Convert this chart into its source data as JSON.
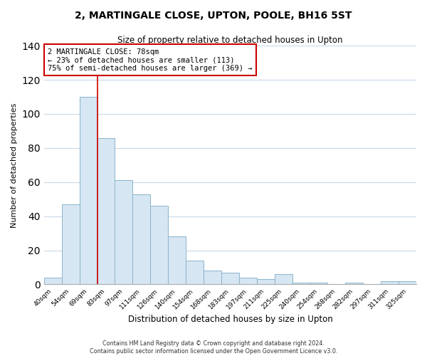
{
  "title": "2, MARTINGALE CLOSE, UPTON, POOLE, BH16 5ST",
  "subtitle": "Size of property relative to detached houses in Upton",
  "xlabel": "Distribution of detached houses by size in Upton",
  "ylabel": "Number of detached properties",
  "bin_labels": [
    "40sqm",
    "54sqm",
    "69sqm",
    "83sqm",
    "97sqm",
    "111sqm",
    "126sqm",
    "140sqm",
    "154sqm",
    "168sqm",
    "183sqm",
    "197sqm",
    "211sqm",
    "225sqm",
    "240sqm",
    "254sqm",
    "268sqm",
    "282sqm",
    "297sqm",
    "311sqm",
    "325sqm"
  ],
  "bar_values": [
    4,
    47,
    110,
    86,
    61,
    53,
    46,
    28,
    14,
    8,
    7,
    4,
    3,
    6,
    1,
    1,
    0,
    1,
    0,
    2,
    2
  ],
  "bar_color": "#d6e6f2",
  "bar_edge_color": "#8ab4cc",
  "ylim": [
    0,
    140
  ],
  "yticks": [
    0,
    20,
    40,
    60,
    80,
    100,
    120,
    140
  ],
  "property_line_label": "2 MARTINGALE CLOSE: 78sqm",
  "annotation_line1": "← 23% of detached houses are smaller (113)",
  "annotation_line2": "75% of semi-detached houses are larger (369) →",
  "annotation_box_color": "#ffffff",
  "annotation_box_edge": "#cc0000",
  "line_color": "#cc0000",
  "footer1": "Contains HM Land Registry data © Crown copyright and database right 2024.",
  "footer2": "Contains public sector information licensed under the Open Government Licence v3.0.",
  "background_color": "#ffffff",
  "grid_color": "#c8d8e8"
}
